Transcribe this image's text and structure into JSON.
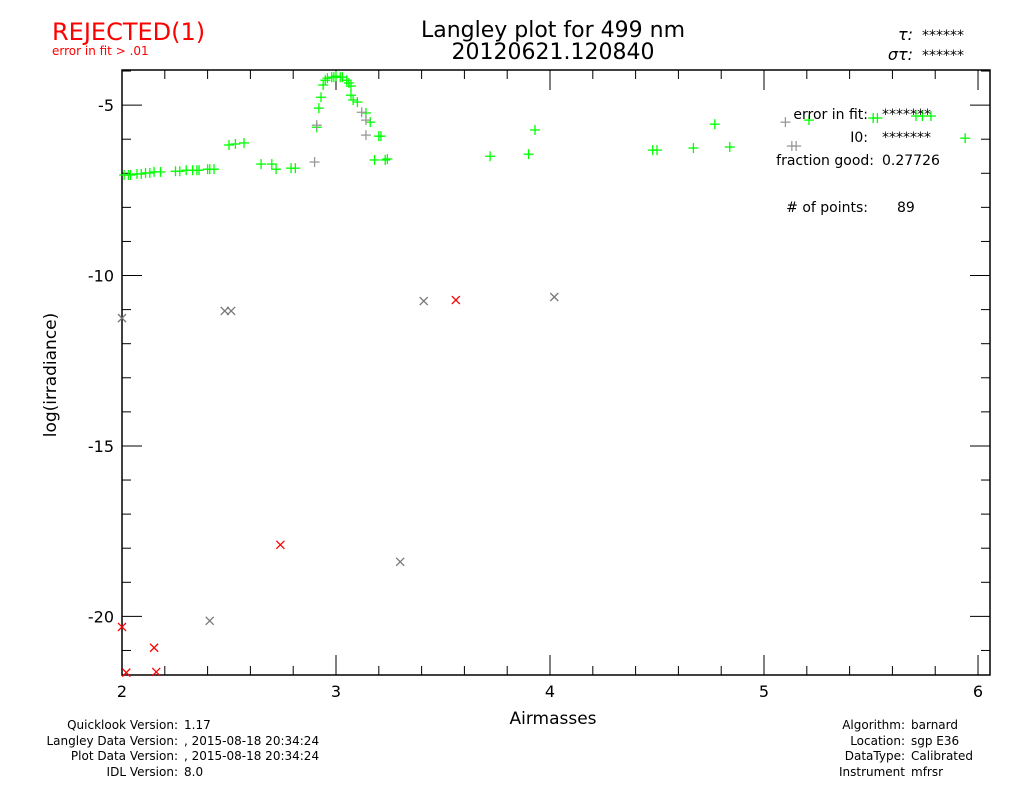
{
  "status": {
    "label": "REJECTED(1)",
    "reason": "error in fit > .01",
    "color": "#ff0000"
  },
  "header": {
    "tau_label": "τ:",
    "tau_value": "******",
    "sigma_label": "στ:",
    "sigma_value": "******"
  },
  "stats": {
    "error_label": "error in fit:",
    "error_value": "*******",
    "i0_label": "I0:",
    "i0_value": "*******",
    "fraction_label": "fraction good:",
    "fraction_value": "0.27726",
    "points_label": "# of points:",
    "points_value": "89"
  },
  "footer_left": [
    {
      "label": "Quicklook Version:",
      "value": "1.17"
    },
    {
      "label": "Langley Data Version:",
      "value": ", 2015-08-18 20:34:24"
    },
    {
      "label": "Plot Data Version:",
      "value": ", 2015-08-18 20:34:24"
    },
    {
      "label": "IDL Version:",
      "value": "8.0"
    }
  ],
  "footer_right": [
    {
      "label": "Algorithm:",
      "value": "barnard"
    },
    {
      "label": "Location:",
      "value": "sgp E36"
    },
    {
      "label": "DataType:",
      "value": "Calibrated"
    },
    {
      "label": "Instrument",
      "value": "mfrsr"
    }
  ],
  "chart_data": {
    "type": "scatter",
    "title": "Langley plot for 499 nm",
    "subtitle": "20120621.120840",
    "xlabel": "Airmasses",
    "ylabel": "log(irradiance)",
    "xlim": [
      2,
      6.056
    ],
    "ylim": [
      -21.72,
      -3.97
    ],
    "xticks": [
      2,
      3,
      4,
      5,
      6
    ],
    "xtick_labels": [
      "2",
      "3",
      "4",
      "5",
      "6"
    ],
    "yticks": [
      -5,
      -10,
      -15,
      -20
    ],
    "ytick_labels": [
      "-5",
      "-10",
      "-15",
      "-20"
    ],
    "grid": false,
    "series": [
      {
        "name": "good",
        "marker": "plus",
        "color": "#00ff00",
        "points": [
          [
            2.01,
            -7.05
          ],
          [
            2.03,
            -7.05
          ],
          [
            2.04,
            -7.05
          ],
          [
            2.07,
            -7.02
          ],
          [
            2.09,
            -7.02
          ],
          [
            2.11,
            -6.99
          ],
          [
            2.13,
            -6.99
          ],
          [
            2.15,
            -6.96
          ],
          [
            2.18,
            -6.96
          ],
          [
            2.25,
            -6.94
          ],
          [
            2.27,
            -6.94
          ],
          [
            2.3,
            -6.91
          ],
          [
            2.33,
            -6.91
          ],
          [
            2.35,
            -6.91
          ],
          [
            2.36,
            -6.91
          ],
          [
            2.4,
            -6.88
          ],
          [
            2.41,
            -6.88
          ],
          [
            2.43,
            -6.88
          ],
          [
            2.5,
            -6.17
          ],
          [
            2.53,
            -6.14
          ],
          [
            2.57,
            -6.11
          ],
          [
            2.65,
            -6.73
          ],
          [
            2.7,
            -6.73
          ],
          [
            2.72,
            -6.88
          ],
          [
            2.79,
            -6.85
          ],
          [
            2.81,
            -6.85
          ],
          [
            2.91,
            -5.65
          ],
          [
            2.92,
            -5.09
          ],
          [
            2.93,
            -4.77
          ],
          [
            2.94,
            -4.41
          ],
          [
            2.95,
            -4.27
          ],
          [
            2.96,
            -4.21
          ],
          [
            2.98,
            -4.18
          ],
          [
            2.99,
            -4.18
          ],
          [
            3.0,
            -4.15
          ],
          [
            3.02,
            -4.18
          ],
          [
            3.03,
            -4.18
          ],
          [
            3.05,
            -4.27
          ],
          [
            3.06,
            -4.35
          ],
          [
            3.07,
            -4.44
          ],
          [
            3.07,
            -4.71
          ],
          [
            3.08,
            -4.85
          ],
          [
            3.1,
            -4.91
          ],
          [
            3.14,
            -5.23
          ],
          [
            3.16,
            -5.5
          ],
          [
            3.18,
            -6.61
          ],
          [
            3.2,
            -5.91
          ],
          [
            3.21,
            -5.91
          ],
          [
            3.23,
            -6.61
          ],
          [
            3.24,
            -6.58
          ],
          [
            3.72,
            -6.5
          ],
          [
            3.9,
            -6.44
          ],
          [
            3.93,
            -5.73
          ],
          [
            4.48,
            -6.32
          ],
          [
            4.5,
            -6.32
          ],
          [
            4.67,
            -6.26
          ],
          [
            4.77,
            -5.56
          ],
          [
            4.84,
            -6.23
          ],
          [
            5.21,
            -5.44
          ],
          [
            5.51,
            -5.38
          ],
          [
            5.53,
            -5.38
          ],
          [
            5.71,
            -5.32
          ],
          [
            5.74,
            -5.32
          ],
          [
            5.78,
            -5.32
          ],
          [
            5.94,
            -5.97
          ]
        ]
      },
      {
        "name": "excluded",
        "marker": "plus",
        "color": "#999999",
        "points": [
          [
            2.91,
            -5.59
          ],
          [
            2.9,
            -6.67
          ],
          [
            3.12,
            -5.21
          ],
          [
            3.14,
            -5.44
          ],
          [
            3.14,
            -5.88
          ],
          [
            5.1,
            -5.5
          ],
          [
            5.13,
            -6.2
          ],
          [
            5.15,
            -6.2
          ]
        ]
      },
      {
        "name": "outliers",
        "marker": "x",
        "color": "#777777",
        "points": [
          [
            2.0,
            -11.25
          ],
          [
            2.48,
            -11.04
          ],
          [
            2.51,
            -11.04
          ],
          [
            3.41,
            -10.75
          ],
          [
            4.02,
            -10.63
          ],
          [
            3.3,
            -18.4
          ],
          [
            2.41,
            -20.13
          ]
        ]
      },
      {
        "name": "rejected",
        "marker": "x",
        "color": "#ff0000",
        "points": [
          [
            2.0,
            -20.31
          ],
          [
            2.02,
            -21.65
          ],
          [
            2.15,
            -20.92
          ],
          [
            2.16,
            -21.63
          ],
          [
            2.74,
            -17.9
          ],
          [
            3.56,
            -10.72
          ]
        ]
      }
    ]
  }
}
